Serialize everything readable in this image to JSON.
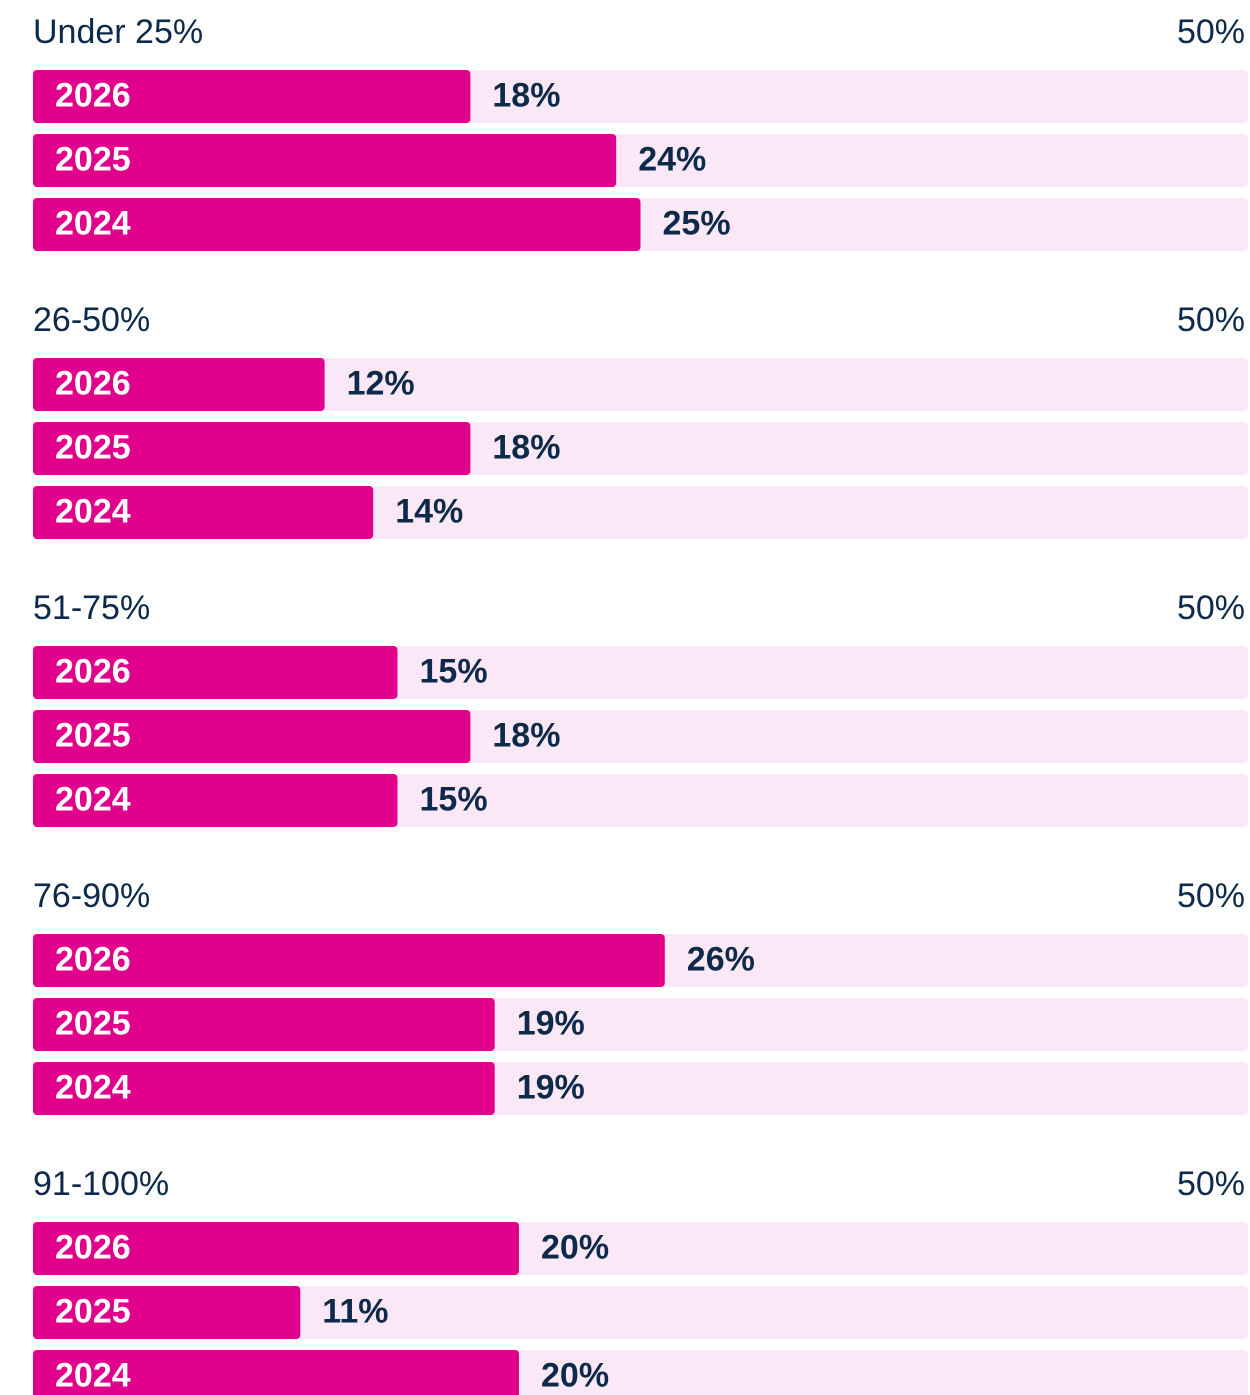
{
  "chart_data": [
    {
      "type": "bar",
      "title": "Under 25%",
      "categories": [
        "2026",
        "2025",
        "2024"
      ],
      "values": [
        18,
        24,
        25
      ],
      "value_labels": [
        "18%",
        "24%",
        "25%"
      ],
      "xlim": [
        0,
        50
      ],
      "xticks": [
        {
          "value": 50,
          "label": "50%"
        }
      ],
      "color": "#e0008c",
      "track_color": "#fbe8f6"
    },
    {
      "type": "bar",
      "title": "26-50%",
      "categories": [
        "2026",
        "2025",
        "2024"
      ],
      "values": [
        12,
        18,
        14
      ],
      "value_labels": [
        "12%",
        "18%",
        "14%"
      ],
      "xlim": [
        0,
        50
      ],
      "xticks": [
        {
          "value": 50,
          "label": "50%"
        }
      ],
      "color": "#e0008c",
      "track_color": "#fbe8f6"
    },
    {
      "type": "bar",
      "title": "51-75%",
      "categories": [
        "2026",
        "2025",
        "2024"
      ],
      "values": [
        15,
        18,
        15
      ],
      "value_labels": [
        "15%",
        "18%",
        "15%"
      ],
      "xlim": [
        0,
        50
      ],
      "xticks": [
        {
          "value": 50,
          "label": "50%"
        }
      ],
      "color": "#e0008c",
      "track_color": "#fbe8f6"
    },
    {
      "type": "bar",
      "title": "76-90%",
      "categories": [
        "2026",
        "2025",
        "2024"
      ],
      "values": [
        26,
        19,
        19
      ],
      "value_labels": [
        "26%",
        "19%",
        "19%"
      ],
      "xlim": [
        0,
        50
      ],
      "xticks": [
        {
          "value": 50,
          "label": "50%"
        }
      ],
      "color": "#e0008c",
      "track_color": "#fbe8f6"
    },
    {
      "type": "bar",
      "title": "91-100%",
      "categories": [
        "2026",
        "2025",
        "2024"
      ],
      "values": [
        20,
        11,
        20
      ],
      "value_labels": [
        "20%",
        "11%",
        "20%"
      ],
      "xlim": [
        0,
        50
      ],
      "xticks": [
        {
          "value": 50,
          "label": "50%"
        }
      ],
      "color": "#e0008c",
      "track_color": "#fbe8f6"
    }
  ]
}
